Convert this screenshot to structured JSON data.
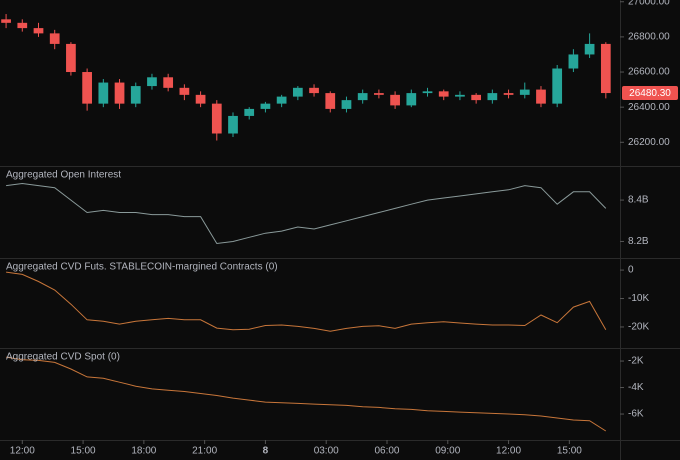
{
  "chart_data": {
    "type": "multi-panel",
    "x": [
      -0.8,
      0,
      0.8,
      1.6,
      2.4,
      3.2,
      4,
      4.8,
      5.6,
      6.4,
      7.2,
      8,
      8.8,
      9.6,
      10.4,
      11.2,
      12,
      12.8,
      13.6,
      14.4,
      15.2,
      16,
      16.8,
      17.6,
      18.4,
      19.2,
      20,
      20.8,
      21.6,
      22.4,
      23.2,
      24,
      24.8,
      25.6,
      26.4,
      27.2,
      28,
      28.8
    ],
    "xlim": [
      -1.1,
      29.5
    ],
    "xticks": [
      {
        "value": 0,
        "label": "12:00"
      },
      {
        "value": 3,
        "label": "15:00"
      },
      {
        "value": 6,
        "label": "18:00"
      },
      {
        "value": 9,
        "label": "21:00"
      },
      {
        "value": 12,
        "label": "8"
      },
      {
        "value": 15,
        "label": "03:00"
      },
      {
        "value": 18,
        "label": "06:00"
      },
      {
        "value": 21,
        "label": "09:00"
      },
      {
        "value": 24,
        "label": "12:00"
      },
      {
        "value": 27,
        "label": "15:00"
      }
    ],
    "panels": [
      {
        "type": "candlestick",
        "up_color": "#26a69a",
        "down_color": "#ef5350",
        "open": [
          26900,
          26880,
          26850,
          26820,
          26760,
          26600,
          26420,
          26540,
          26420,
          26520,
          26570,
          26510,
          26470,
          26420,
          26250,
          26350,
          26390,
          26420,
          26460,
          26510,
          26480,
          26390,
          26440,
          26480,
          26470,
          26410,
          26480,
          26490,
          26460,
          26470,
          26440,
          26480,
          26470,
          26500,
          26420,
          26620,
          26700,
          26760
        ],
        "high": [
          26930,
          26900,
          26880,
          26840,
          26770,
          26620,
          26560,
          26560,
          26540,
          26590,
          26590,
          26530,
          26490,
          26440,
          26370,
          26400,
          26430,
          26470,
          26520,
          26530,
          26490,
          26460,
          26500,
          26500,
          26490,
          26500,
          26510,
          26500,
          26490,
          26480,
          26500,
          26500,
          26540,
          26520,
          26640,
          26730,
          26820,
          26770
        ],
        "low": [
          26850,
          26830,
          26800,
          26730,
          26580,
          26380,
          26400,
          26390,
          26400,
          26500,
          26490,
          26440,
          26400,
          26210,
          26230,
          26330,
          26370,
          26400,
          26440,
          26460,
          26370,
          26370,
          26420,
          26450,
          26390,
          26400,
          26460,
          26440,
          26440,
          26420,
          26420,
          26450,
          26450,
          26400,
          26400,
          26600,
          26680,
          26450
        ],
        "close": [
          26880,
          26850,
          26820,
          26760,
          26600,
          26420,
          26540,
          26420,
          26520,
          26570,
          26510,
          26470,
          26420,
          26250,
          26350,
          26390,
          26420,
          26460,
          26510,
          26480,
          26390,
          26440,
          26480,
          26470,
          26410,
          26480,
          26490,
          26460,
          26470,
          26440,
          26480,
          26470,
          26500,
          26420,
          26620,
          26700,
          26760,
          26480.3
        ],
        "last_label": "26480.30",
        "ylim": [
          26065,
          27010
        ],
        "yticks": [
          {
            "value": 27000,
            "label": "27000.00"
          },
          {
            "value": 26800,
            "label": "26800.00"
          },
          {
            "value": 26600,
            "label": "26600.00"
          },
          {
            "value": 26400,
            "label": "26400.00"
          },
          {
            "value": 26200,
            "label": "26200.00"
          }
        ]
      },
      {
        "type": "line",
        "title": "Aggregated Open Interest",
        "color": "#8a9a9a",
        "values": [
          8.47,
          8.48,
          8.47,
          8.46,
          8.4,
          8.34,
          8.35,
          8.34,
          8.34,
          8.33,
          8.33,
          8.32,
          8.32,
          8.19,
          8.2,
          8.22,
          8.24,
          8.25,
          8.27,
          8.26,
          8.28,
          8.3,
          8.32,
          8.34,
          8.36,
          8.38,
          8.4,
          8.41,
          8.42,
          8.43,
          8.44,
          8.45,
          8.47,
          8.46,
          8.38,
          8.44,
          8.44,
          8.36
        ],
        "ylim": [
          8.12,
          8.56
        ],
        "yticks": [
          {
            "value": 8.4,
            "label": "8.4B"
          },
          {
            "value": 8.2,
            "label": "8.2B"
          }
        ]
      },
      {
        "type": "line",
        "title": "Aggregated CVD Futs. STABLECOIN-margined Contracts (0)",
        "color": "#c8763a",
        "values": [
          -700,
          -1500,
          -4000,
          -7000,
          -12000,
          -17500,
          -18000,
          -19000,
          -18000,
          -17500,
          -17000,
          -17500,
          -17500,
          -20400,
          -21000,
          -20800,
          -19500,
          -19300,
          -19800,
          -20500,
          -21500,
          -20500,
          -19800,
          -19600,
          -20500,
          -19000,
          -18500,
          -18200,
          -18600,
          -19000,
          -19300,
          -19300,
          -19500,
          -15800,
          -18500,
          -13000,
          -11000,
          -21000
        ],
        "ylim": [
          -27400,
          3900
        ],
        "yticks": [
          0,
          {
            "value": -10000,
            "label": "-10K"
          },
          {
            "value": -20000,
            "label": "-20K"
          }
        ]
      },
      {
        "type": "line",
        "title": "Aggregated CVD Spot (0)",
        "color": "#c8763a",
        "values": [
          -1700,
          -1900,
          -1950,
          -2100,
          -2600,
          -3200,
          -3300,
          -3600,
          -3900,
          -4100,
          -4200,
          -4300,
          -4450,
          -4600,
          -4800,
          -4950,
          -5100,
          -5150,
          -5200,
          -5250,
          -5300,
          -5350,
          -5450,
          -5500,
          -5600,
          -5650,
          -5750,
          -5800,
          -5850,
          -5900,
          -5950,
          -6000,
          -6050,
          -6150,
          -6300,
          -6450,
          -6500,
          -7280
        ],
        "ylim": [
          -7960,
          -1090
        ],
        "yticks": [
          {
            "value": -2000,
            "label": "-2K"
          },
          {
            "value": -4000,
            "label": "-4K"
          },
          {
            "value": -6000,
            "label": "-6K"
          }
        ]
      }
    ]
  }
}
